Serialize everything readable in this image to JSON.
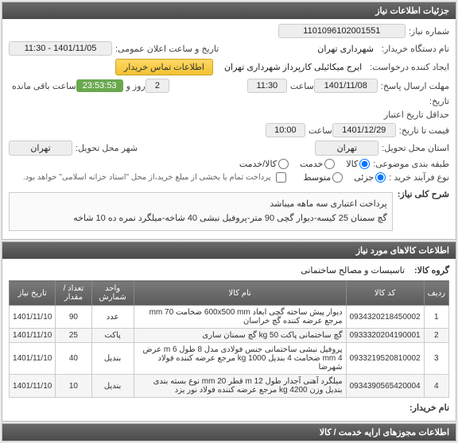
{
  "header": {
    "title": "جزئیات اطلاعات نیاز"
  },
  "info": {
    "need_number_label": "شماره نیاز:",
    "need_number": "1101096102001551",
    "buyer_org_label": "نام دستگاه خریدار:",
    "buyer_org": "شهرداری تهران",
    "creator_label": "ایجاد کننده درخواست:",
    "creator": "ایرج میکائیلی کارپرداز شهرداری تهران",
    "contact_btn": "اطلاعات تماس خریدار",
    "announce_label": "تاریخ و ساعت اعلان عمومی:",
    "announce_val": "1401/11/05 - 11:30",
    "deadline_time_label": "مهلت ارسال پاسخ:",
    "deadline_date": "1401/11/08",
    "time_label": "ساعت",
    "deadline_time": "11:30",
    "day_label": "روز و",
    "days_left": "2",
    "countdown": "23:53:53",
    "remaining_label": "ساعت باقی مانده",
    "date_label": "تاریخ:",
    "min_valid_label": "حداقل تاریخ اعتبار",
    "price_to_label": "قیمت تا تاریخ:",
    "valid_date": "1401/12/29",
    "valid_time": "10:00",
    "delivery_state_label": "استان محل تحویل:",
    "delivery_state": "تهران",
    "delivery_city_label": "شهر محل تحویل:",
    "delivery_city": "تهران",
    "class_label": "طبقه بندی موضوعی:",
    "radio_goods": "کالا",
    "radio_service": "خدمت",
    "radio_goods_service": "کالا/خدمت",
    "purchase_type_label": "نوع فرآیند خرید :",
    "radio_partial": "جزئی",
    "radio_medium": "متوسط",
    "purchase_note": "پرداخت تمام یا بخشی از مبلغ خرید،از محل \"اسناد خزانه اسلامی\" خواهد بود.",
    "checkbox_pay": false
  },
  "desc": {
    "label": "شرح کلی نیاز:",
    "text": "پرداخت اعتباری سه ماهه میباشد\nگچ سمنان 25 کیسه-دیوار گچی 90 متر-پروفیل نبشی 40 شاخه-میلگرد نمره ده 10 شاخه"
  },
  "goods_header": {
    "title": "اطلاعات کالاهای مورد نیاز"
  },
  "goods_group": {
    "label": "گروه کالا:",
    "value": "تاسیسات و مصالح ساختمانی"
  },
  "table": {
    "columns": [
      "ردیف",
      "کد کالا",
      "نام کالا",
      "واحد شمارش",
      "تعداد / مقدار",
      "تاریخ نیاز"
    ],
    "rows": [
      [
        "1",
        "0934320218450002",
        "دیوار پیش ساخته گچی ابعاد 600x500 mm ضخامت 70 mm مرجع عرضه کننده گچ خراسان",
        "عدد",
        "90",
        "1401/11/10"
      ],
      [
        "2",
        "0933320204190001",
        "گچ ساختمانی پاکت 50 kg گچ سمنان ساری",
        "پاکت",
        "25",
        "1401/11/10"
      ],
      [
        "3",
        "0933219520810002",
        "پروفیل نبشی ساختمانی جنس فولادی مدل 8 طول 6 m عرض 4 mm ضخامت 4 بندیل 1000 kg مرجع عرضه کننده فولاد شهرضا",
        "بندیل",
        "40",
        "1401/11/10"
      ],
      [
        "4",
        "0934390565420004",
        "میلگرد آهنی آجدار طول 12 m قطر 20 mm نوع بسته بندی بندیل وزن 4200 kg مرجع عرضه کننده فولاد نور یزد",
        "بندیل",
        "10",
        "1401/11/10"
      ]
    ]
  },
  "buyer_name_label": "نام خریدار:",
  "footer": {
    "title": "اطلاعات مجوزهای ارایه خدمت / کالا"
  }
}
